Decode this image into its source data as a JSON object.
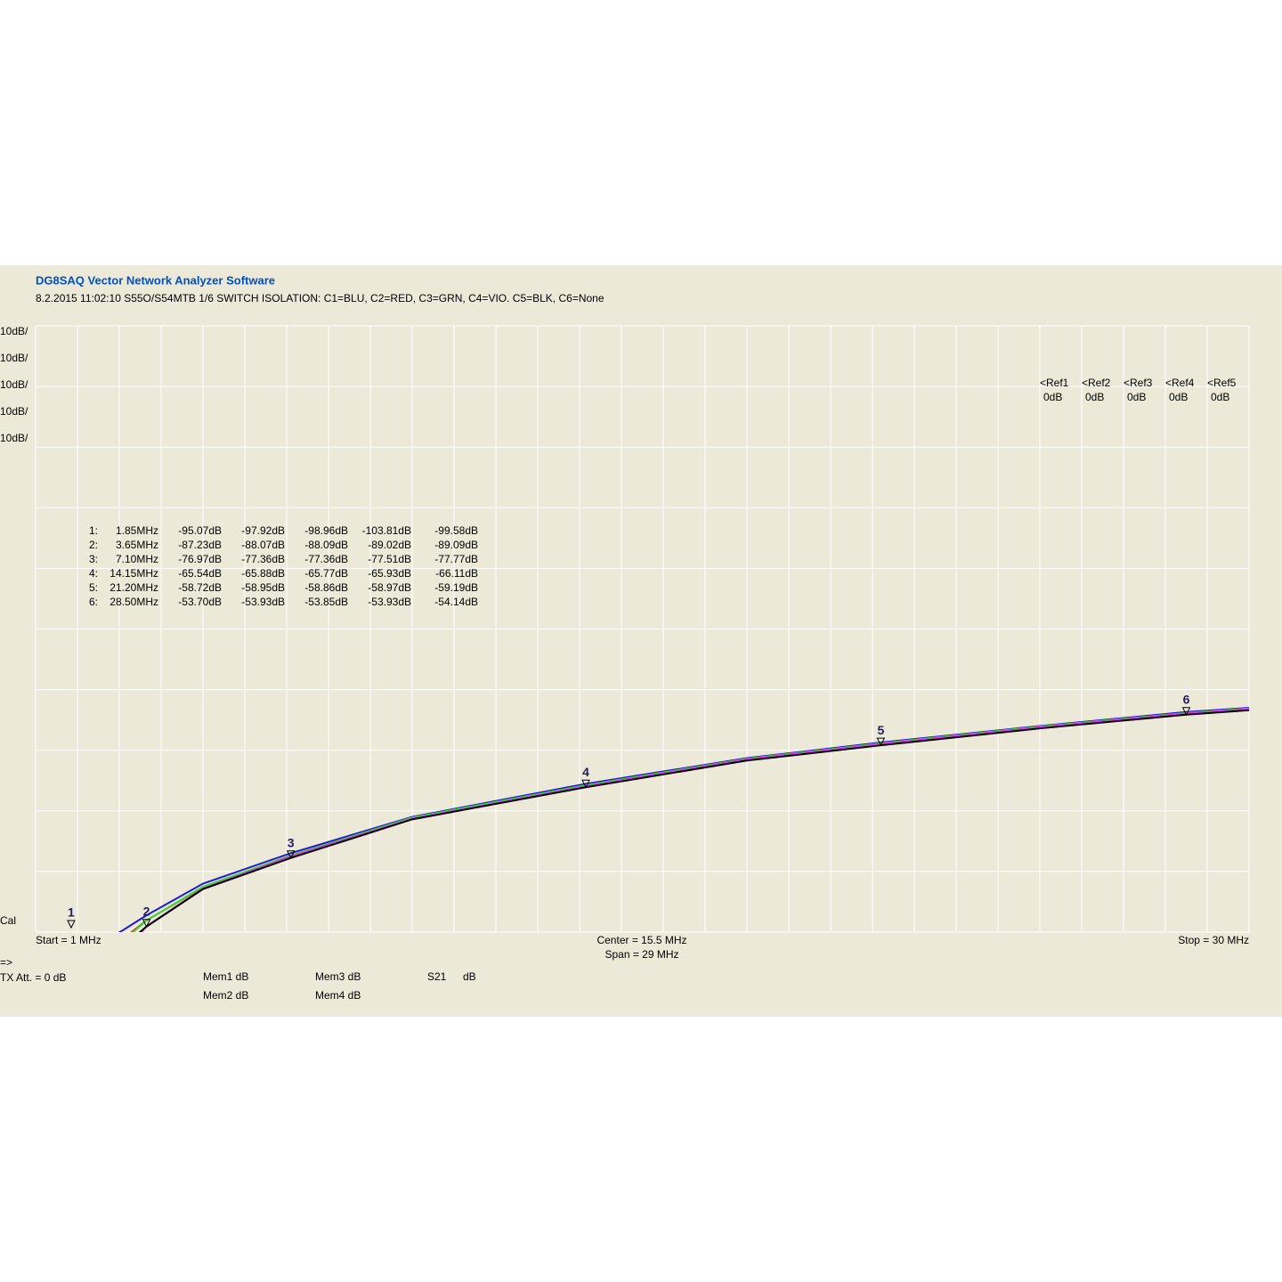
{
  "chart_data": {
    "type": "line",
    "title": "DG8SAQ Vector Network Analyzer Software",
    "subtitle": "8.2.2015   11:02:10    S55O/S54MTB 1/6 SWITCH ISOLATION: C1=BLU, C2=RED, C3=GRN, C4=VIO. C5=BLK, C6=None",
    "scale_labels": [
      "10dB/",
      "10dB/",
      "10dB/",
      "10dB/",
      "10dB/"
    ],
    "refs": [
      [
        "<Ref1",
        "0dB"
      ],
      [
        "<Ref2",
        "0dB"
      ],
      [
        "<Ref3",
        "0dB"
      ],
      [
        "<Ref4",
        "0dB"
      ],
      [
        "<Ref5",
        "0dB"
      ]
    ],
    "cal_label": "Cal",
    "start_label": "Start = 1 MHz",
    "center_label": "Center = 15.5 MHz",
    "span_label": "Span = 29 MHz",
    "stop_label": "Stop = 30 MHz",
    "arrow_label": "=>",
    "tx_label": "TX Att.  = 0 dB",
    "legend_unit": "dB",
    "xlim": [
      1,
      30
    ],
    "ylim": [
      -90,
      10
    ],
    "grid": true,
    "x": [
      1.85,
      3.65,
      5,
      7.1,
      10,
      14.15,
      18,
      21.2,
      25,
      28.5,
      30
    ],
    "series": [
      {
        "name": "Mem1 dB",
        "color": "#1a1ad8",
        "values": [
          -95.07,
          -87.23,
          -82.0,
          -76.97,
          -71.0,
          -65.54,
          -61.3,
          -58.72,
          -56.0,
          -53.7,
          -53.0
        ]
      },
      {
        "name": "Mem2 dB",
        "color": "#e01818",
        "values": [
          -97.92,
          -88.07,
          -82.6,
          -77.36,
          -71.2,
          -65.88,
          -61.5,
          -58.95,
          -56.2,
          -53.93,
          -53.2
        ]
      },
      {
        "name": "Mem3 dB",
        "color": "#30e030",
        "values": [
          -98.96,
          -88.09,
          -82.5,
          -77.36,
          -71.1,
          -65.77,
          -61.4,
          -58.86,
          -56.1,
          -53.85,
          -53.1
        ]
      },
      {
        "name": "Mem4 dB",
        "color": "#e030e0",
        "values": [
          -103.81,
          -89.02,
          -82.8,
          -77.51,
          -71.3,
          -65.93,
          -61.5,
          -58.97,
          -56.2,
          -53.93,
          -53.2
        ]
      },
      {
        "name": "S21",
        "color": "#000000",
        "values": [
          -99.58,
          -89.09,
          -82.9,
          -77.77,
          -71.4,
          -66.11,
          -61.7,
          -59.19,
          -56.4,
          -54.14,
          -53.4
        ]
      }
    ],
    "markers": [
      {
        "number": "1",
        "table_label": "1:",
        "freq": "1.85MHz",
        "x": 1.85,
        "readings": [
          "-95.07dB",
          "-97.92dB",
          "-98.96dB",
          "-103.81dB",
          "-99.58dB"
        ]
      },
      {
        "number": "2",
        "table_label": "2:",
        "freq": "3.65MHz",
        "x": 3.65,
        "readings": [
          "-87.23dB",
          "-88.07dB",
          "-88.09dB",
          "-89.02dB",
          "-89.09dB"
        ]
      },
      {
        "number": "3",
        "table_label": "3:",
        "freq": "7.10MHz",
        "x": 7.1,
        "readings": [
          "-76.97dB",
          "-77.36dB",
          "-77.36dB",
          "-77.51dB",
          "-77.77dB"
        ]
      },
      {
        "number": "4",
        "table_label": "4:",
        "freq": "14.15MHz",
        "x": 14.15,
        "readings": [
          "-65.54dB",
          "-65.88dB",
          "-65.77dB",
          "-65.93dB",
          "-66.11dB"
        ]
      },
      {
        "number": "5",
        "table_label": "5:",
        "freq": "21.20MHz",
        "x": 21.2,
        "readings": [
          "-58.72dB",
          "-58.95dB",
          "-58.86dB",
          "-58.97dB",
          "-59.19dB"
        ]
      },
      {
        "number": "6",
        "table_label": "6:",
        "freq": "28.50MHz",
        "x": 28.5,
        "readings": [
          "-53.70dB",
          "-53.93dB",
          "-53.85dB",
          "-53.93dB",
          "-54.14dB"
        ]
      }
    ]
  }
}
